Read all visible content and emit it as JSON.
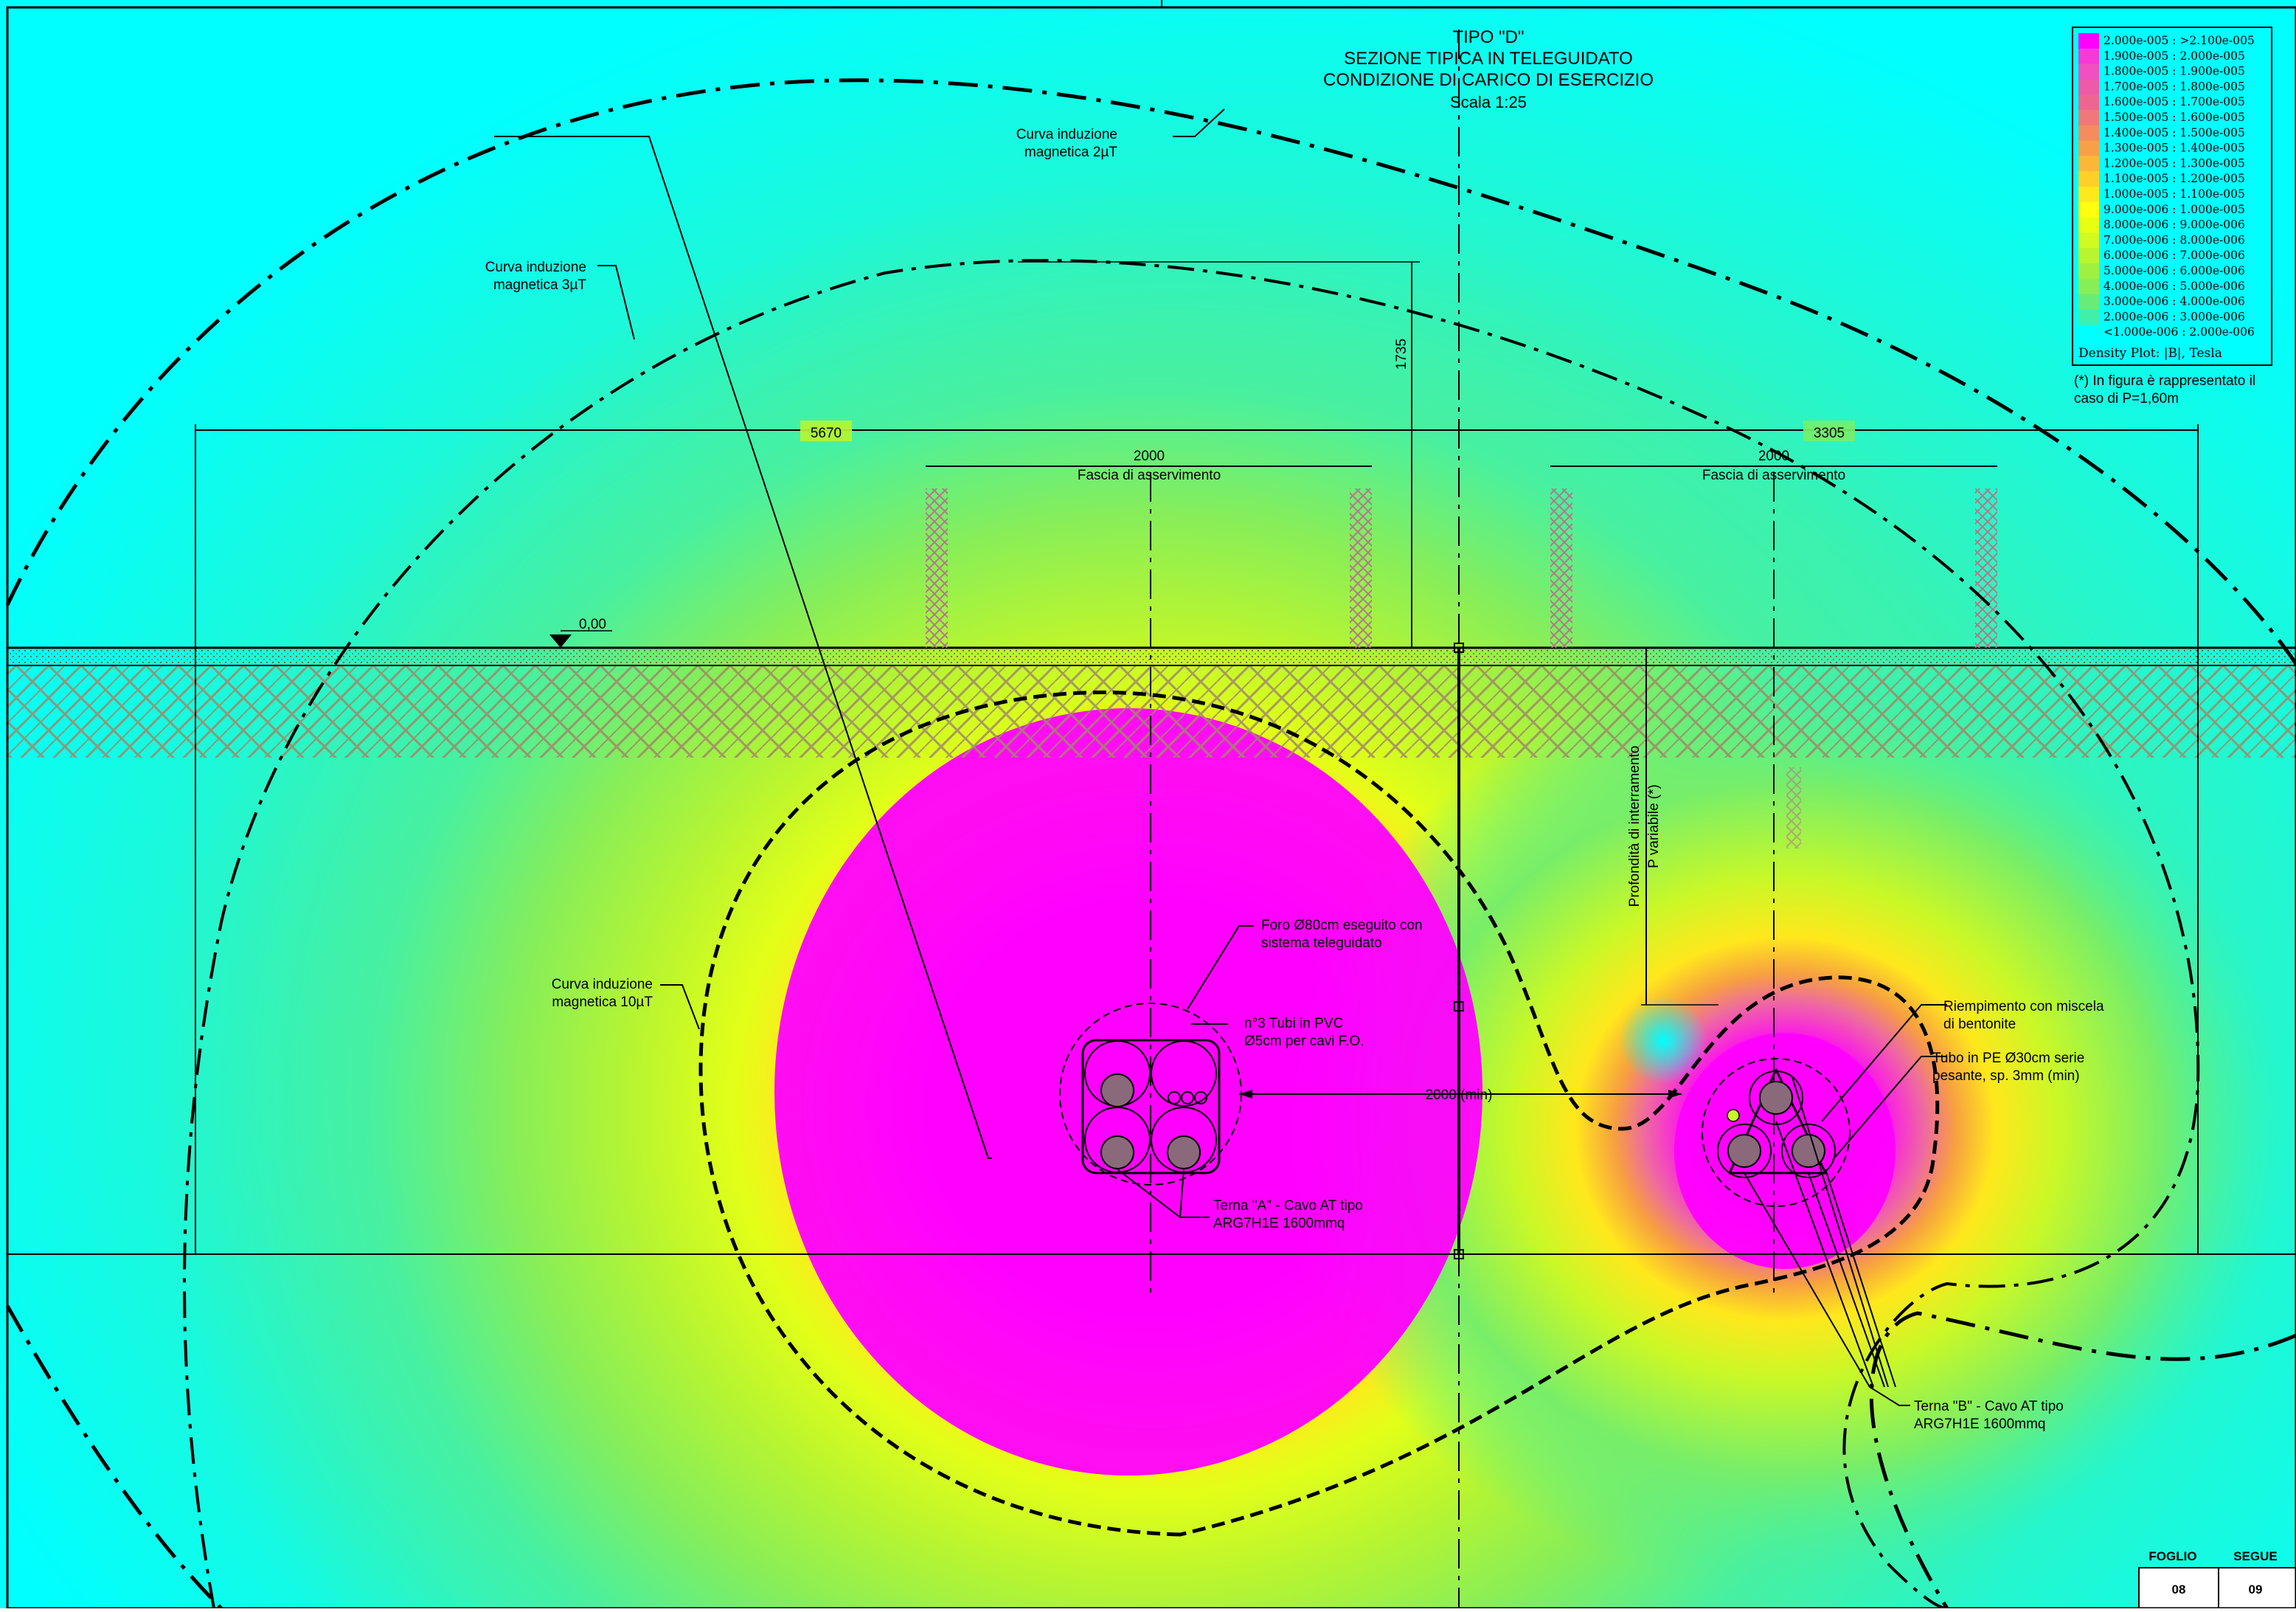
{
  "title": {
    "line1": "TIPO \"D\"",
    "line2": "SEZIONE TIPICA IN  TELEGUIDATO",
    "line3": "CONDIZIONE DI CARICO DI ESERCIZIO",
    "line4": "Scala 1:25"
  },
  "legend": {
    "entries": [
      {
        "label": "2.000e-005 : >2.100e-005",
        "color": "#ff00ff"
      },
      {
        "label": "1.900e-005 : 2.000e-005",
        "color": "#f838d8"
      },
      {
        "label": "1.800e-005 : 1.900e-005",
        "color": "#f050c0"
      },
      {
        "label": "1.700e-005 : 1.800e-005",
        "color": "#ee5aa8"
      },
      {
        "label": "1.600e-005 : 1.700e-005",
        "color": "#ee6690"
      },
      {
        "label": "1.500e-005 : 1.600e-005",
        "color": "#f07878"
      },
      {
        "label": "1.400e-005 : 1.500e-005",
        "color": "#f58c60"
      },
      {
        "label": "1.300e-005 : 1.400e-005",
        "color": "#f8a048"
      },
      {
        "label": "1.200e-005 : 1.300e-005",
        "color": "#fbb838"
      },
      {
        "label": "1.100e-005 : 1.200e-005",
        "color": "#ffd028"
      },
      {
        "label": "1.000e-005 : 1.100e-005",
        "color": "#ffe81c"
      },
      {
        "label": "9.000e-006 : 1.000e-005",
        "color": "#ffff10"
      },
      {
        "label": "8.000e-006 : 9.000e-006",
        "color": "#e8ff14"
      },
      {
        "label": "7.000e-006 : 8.000e-006",
        "color": "#d0fa20"
      },
      {
        "label": "6.000e-006 : 7.000e-006",
        "color": "#b8f530"
      },
      {
        "label": "5.000e-006 : 6.000e-006",
        "color": "#a0f040"
      },
      {
        "label": "4.000e-006 : 5.000e-006",
        "color": "#88ee58"
      },
      {
        "label": "3.000e-006 : 4.000e-006",
        "color": "#68ec78"
      },
      {
        "label": "2.000e-006 : 3.000e-006",
        "color": "#40f0a8"
      },
      {
        "label": "<1.000e-006 : 2.000e-006",
        "color": "#00ffff"
      }
    ],
    "footer": "Density Plot: |B|, Tesla"
  },
  "note": {
    "line1": "(*) In figura è rappresentato il",
    "line2": "caso di P=1,60m"
  },
  "labels": {
    "curve2_l1": "Curva induzione",
    "curve2_l2": "magnetica 2µT",
    "curve3_l1": "Curva induzione",
    "curve3_l2": "magnetica 3µT",
    "curve10_l1": "Curva induzione",
    "curve10_l2": "magnetica 10µT",
    "dim_5670": "5670",
    "dim_3305": "3305",
    "dim_1735": "1735",
    "dim_2000_left": "2000",
    "dim_2000_right": "2000",
    "fascia_left": "Fascia di asservimento",
    "fascia_right": "Fascia di asservimento",
    "ground_level": "0,00",
    "profondita_l1": "Profondità di interramento",
    "profondita_l2": "P variabile (*)",
    "foro_l1": "Foro Ø80cm eseguito con",
    "foro_l2": "sistema teleguidato",
    "tubi_pvc_l1": "n°3 Tubi in PVC",
    "tubi_pvc_l2": "Ø5cm per cavi F.O.",
    "dim_2000_min": "2000 (min)",
    "terna_a_l1": "Terna \"A\" - Cavo AT tipo",
    "terna_a_l2": "ARG7H1E 1600mmq",
    "riempimento_l1": "Riempimento con miscela",
    "riempimento_l2": "di bentonite",
    "tubo_pe_l1": "Tubo in PE Ø30cm serie",
    "tubo_pe_l2": "pesante, sp. 3mm (min)",
    "terna_b_l1": "Terna \"B\" - Cavo AT tipo",
    "terna_b_l2": "ARG7H1E 1600mmq"
  },
  "titleblock": {
    "foglio_label": "FOGLIO",
    "segue_label": "SEGUE",
    "foglio_value": "08",
    "segue_value": "09"
  }
}
